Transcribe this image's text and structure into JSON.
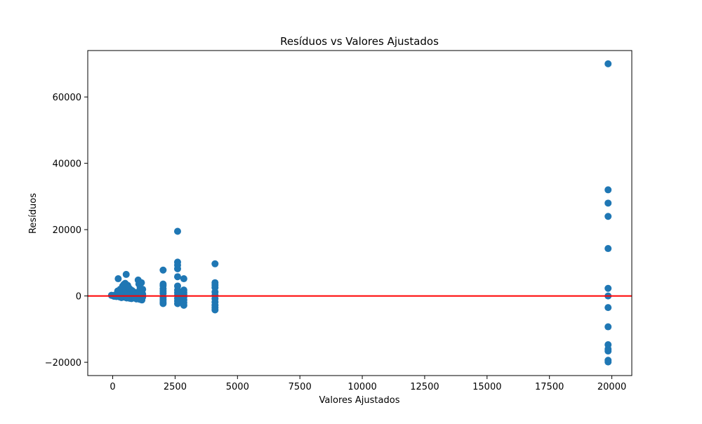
{
  "chart_data": {
    "type": "scatter",
    "title": "Resíduos vs Valores Ajustados",
    "xlabel": "Valores Ajustados",
    "ylabel": "Resíduos",
    "xlim": [
      -1000,
      20800
    ],
    "ylim": [
      -24000,
      74000
    ],
    "xticks": [
      0,
      2500,
      5000,
      7500,
      10000,
      12500,
      15000,
      17500,
      20000
    ],
    "yticks": [
      -20000,
      0,
      20000,
      40000,
      60000
    ],
    "xtick_labels": [
      "0",
      "2500",
      "5000",
      "7500",
      "10000",
      "12500",
      "15000",
      "17500",
      "20000"
    ],
    "ytick_labels": [
      "−20000",
      "0",
      "20000",
      "40000",
      "60000"
    ],
    "grid": false,
    "point_color": "#1f77b4",
    "reference_line": {
      "y": 0,
      "color": "#ff0000"
    },
    "points": [
      [
        -50,
        200
      ],
      [
        0,
        100
      ],
      [
        50,
        -100
      ],
      [
        100,
        300
      ],
      [
        150,
        -200
      ],
      [
        200,
        1500
      ],
      [
        220,
        5200
      ],
      [
        250,
        800
      ],
      [
        280,
        -300
      ],
      [
        300,
        2000
      ],
      [
        320,
        1200
      ],
      [
        350,
        -500
      ],
      [
        380,
        2500
      ],
      [
        400,
        3000
      ],
      [
        420,
        600
      ],
      [
        450,
        3500
      ],
      [
        480,
        -400
      ],
      [
        500,
        3800
      ],
      [
        520,
        1800
      ],
      [
        540,
        6500
      ],
      [
        560,
        -600
      ],
      [
        580,
        2800
      ],
      [
        600,
        3200
      ],
      [
        620,
        900
      ],
      [
        650,
        2400
      ],
      [
        680,
        -700
      ],
      [
        700,
        2000
      ],
      [
        720,
        1400
      ],
      [
        750,
        -800
      ],
      [
        780,
        1600
      ],
      [
        800,
        800
      ],
      [
        820,
        -600
      ],
      [
        850,
        1200
      ],
      [
        880,
        -500
      ],
      [
        900,
        600
      ],
      [
        950,
        -900
      ],
      [
        1000,
        1100
      ],
      [
        1020,
        4800
      ],
      [
        1050,
        3600
      ],
      [
        1080,
        -1000
      ],
      [
        1100,
        2400
      ],
      [
        1120,
        1800
      ],
      [
        1150,
        4000
      ],
      [
        1170,
        -1200
      ],
      [
        1200,
        2000
      ],
      [
        1200,
        500
      ],
      [
        1200,
        -300
      ],
      [
        1180,
        900
      ],
      [
        2020,
        7800
      ],
      [
        2020,
        3600
      ],
      [
        2020,
        3100
      ],
      [
        2020,
        2200
      ],
      [
        2020,
        1500
      ],
      [
        2020,
        800
      ],
      [
        2020,
        -500
      ],
      [
        2020,
        -1200
      ],
      [
        2020,
        -1800
      ],
      [
        2020,
        -2300
      ],
      [
        2600,
        19500
      ],
      [
        2600,
        10200
      ],
      [
        2600,
        9300
      ],
      [
        2600,
        8200
      ],
      [
        2600,
        5800
      ],
      [
        2600,
        3000
      ],
      [
        2600,
        1800
      ],
      [
        2600,
        1000
      ],
      [
        2600,
        200
      ],
      [
        2600,
        -700
      ],
      [
        2600,
        -1500
      ],
      [
        2600,
        -2300
      ],
      [
        2850,
        5200
      ],
      [
        2850,
        1800
      ],
      [
        2850,
        1100
      ],
      [
        2850,
        500
      ],
      [
        2850,
        -300
      ],
      [
        2850,
        -1200
      ],
      [
        2850,
        -2000
      ],
      [
        2850,
        -2800
      ],
      [
        4100,
        9700
      ],
      [
        4100,
        4000
      ],
      [
        4100,
        3300
      ],
      [
        4100,
        2500
      ],
      [
        4100,
        1200
      ],
      [
        4100,
        200
      ],
      [
        4100,
        -800
      ],
      [
        4100,
        -1800
      ],
      [
        4100,
        -2800
      ],
      [
        4100,
        -3500
      ],
      [
        4100,
        -4200
      ],
      [
        19850,
        70000
      ],
      [
        19850,
        32000
      ],
      [
        19850,
        28000
      ],
      [
        19850,
        24000
      ],
      [
        19850,
        14300
      ],
      [
        19850,
        2300
      ],
      [
        19850,
        0
      ],
      [
        19850,
        -3500
      ],
      [
        19850,
        -9300
      ],
      [
        19850,
        -14700
      ],
      [
        19850,
        -16000
      ],
      [
        19850,
        -16600
      ],
      [
        19850,
        -19400
      ],
      [
        19850,
        -19900
      ]
    ]
  }
}
